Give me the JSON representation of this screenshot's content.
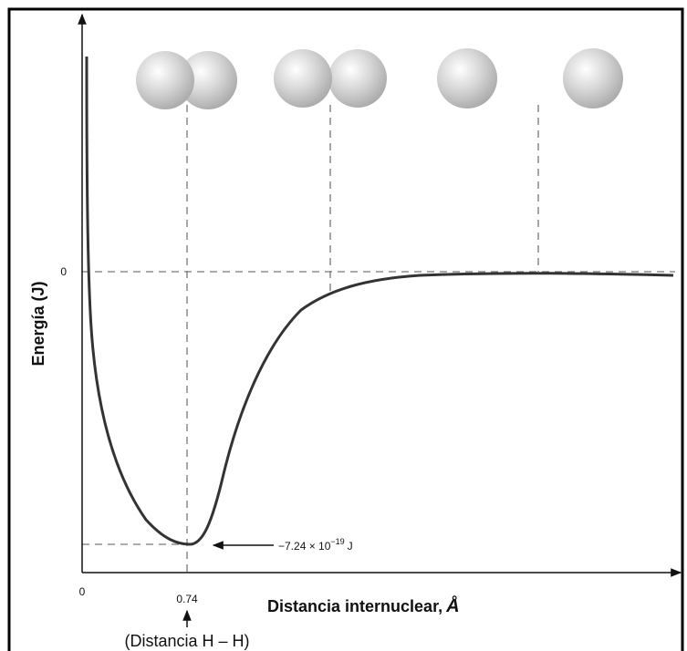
{
  "y_axis_label": "Energía (J)",
  "x_axis_label": {
    "text": "Distancia internuclear,",
    "unit": "Å"
  },
  "y_tick": "0",
  "x_ticks": [
    "0",
    "0.74"
  ],
  "minimum_label": {
    "mantissa": "−7.24 × 10",
    "exponent": "−19",
    "unit": "J"
  },
  "bond_label": "(Distancia H – H)"
}
